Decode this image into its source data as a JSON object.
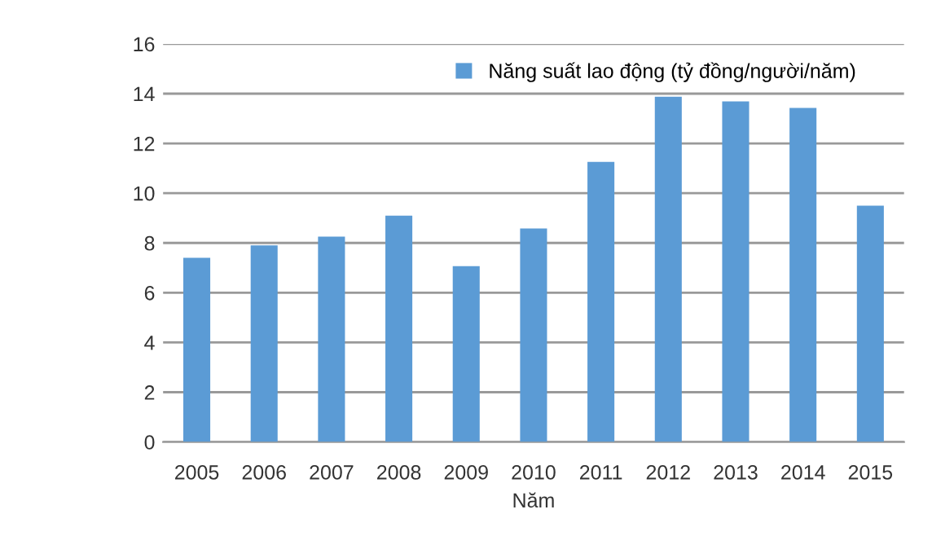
{
  "chart_data": {
    "type": "bar",
    "xlabel": "Năm",
    "categories": [
      "2005",
      "2006",
      "2007",
      "2008",
      "2009",
      "2010",
      "2011",
      "2012",
      "2013",
      "2014",
      "2015"
    ],
    "series": [
      {
        "name": "Năng suất lao động (tỷ đồng/người/năm)",
        "color": "#5b9bd5",
        "values": [
          7.4,
          7.9,
          8.25,
          9.1,
          7.07,
          8.58,
          11.26,
          13.88,
          13.69,
          13.43,
          9.5
        ]
      }
    ],
    "ylim": [
      0,
      16
    ],
    "yticks": [
      0,
      2,
      4,
      6,
      8,
      10,
      12,
      14,
      16
    ],
    "grid": "y",
    "legend": "top right"
  }
}
